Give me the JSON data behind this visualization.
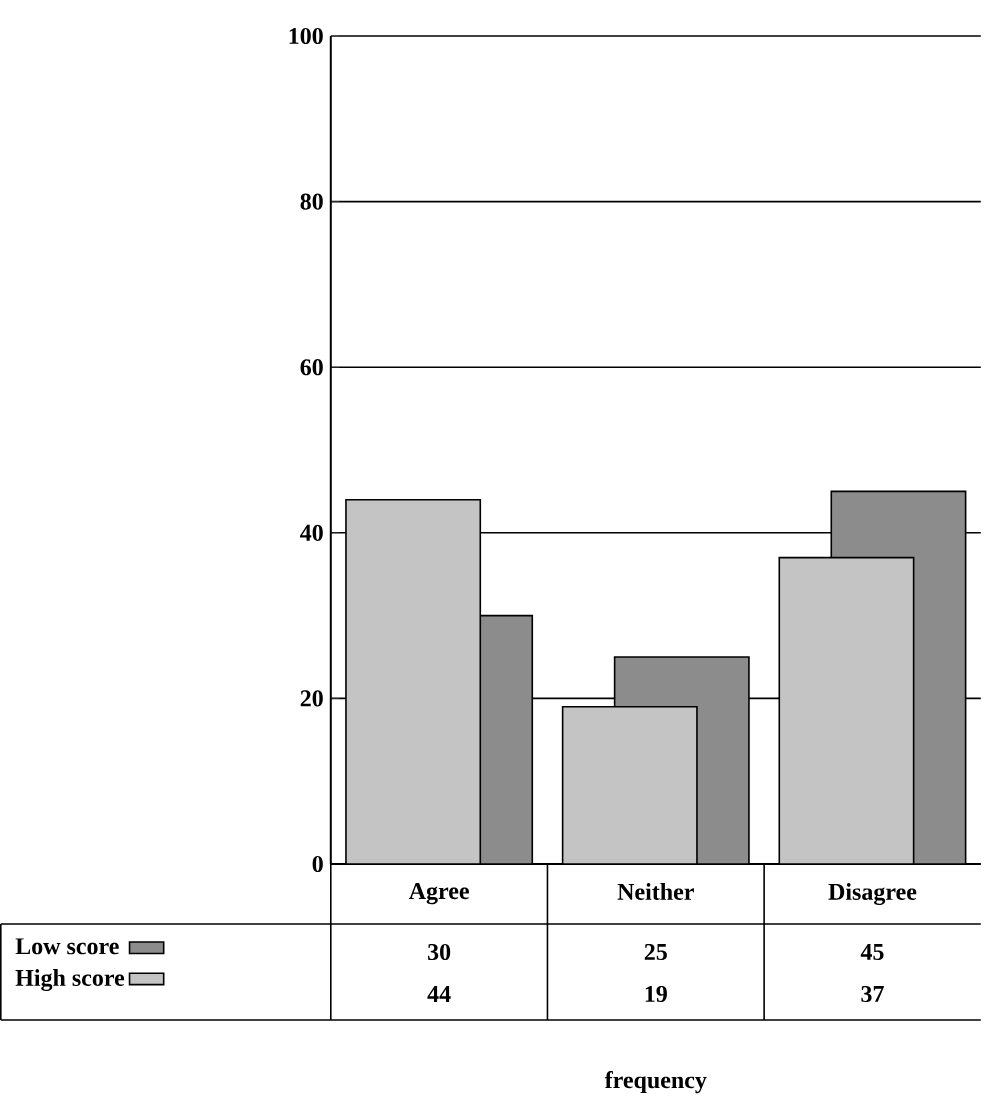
{
  "chart_data": {
    "type": "bar",
    "annotations": [
      "frequency"
    ],
    "categories": [
      "Agree",
      "Neither",
      "Disagree"
    ],
    "series": [
      {
        "name": "Low score",
        "color": "#8c8c8c",
        "values": [
          30,
          25,
          45
        ]
      },
      {
        "name": "High score",
        "color": "#c4c4c4",
        "values": [
          44,
          19,
          37
        ]
      }
    ],
    "ylim": [
      0,
      100
    ],
    "yticks": [
      0,
      20,
      40,
      60,
      80,
      100
    ],
    "grid": "y",
    "legend": "bottom left",
    "data_labels": true
  }
}
